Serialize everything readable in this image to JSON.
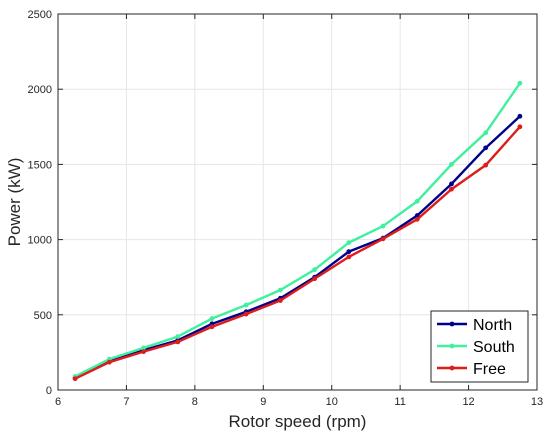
{
  "chart_data": {
    "type": "line",
    "title": "",
    "xlabel": "Rotor speed (rpm)",
    "ylabel": "Power (kW)",
    "xlim": [
      6,
      13
    ],
    "ylim": [
      0,
      2500
    ],
    "xticks": [
      6,
      7,
      8,
      9,
      10,
      11,
      12,
      13
    ],
    "yticks": [
      0,
      500,
      1000,
      1500,
      2000,
      2500
    ],
    "grid": true,
    "legend_position": "bottom-right",
    "x": [
      6.25,
      6.75,
      7.25,
      7.75,
      8.25,
      8.75,
      9.25,
      9.75,
      10.25,
      10.75,
      11.25,
      11.75,
      12.25,
      12.75
    ],
    "series": [
      {
        "name": "North",
        "color": "#00008b",
        "values": [
          80,
          190,
          265,
          330,
          440,
          520,
          610,
          750,
          920,
          1010,
          1160,
          1370,
          1610,
          1820
        ]
      },
      {
        "name": "South",
        "color": "#40f0a0",
        "values": [
          90,
          205,
          280,
          355,
          475,
          565,
          665,
          800,
          980,
          1090,
          1255,
          1500,
          1710,
          2040
        ]
      },
      {
        "name": "Free",
        "color": "#dd1c1c",
        "values": [
          75,
          185,
          255,
          320,
          420,
          505,
          595,
          740,
          885,
          1005,
          1135,
          1335,
          1495,
          1750
        ]
      }
    ]
  }
}
